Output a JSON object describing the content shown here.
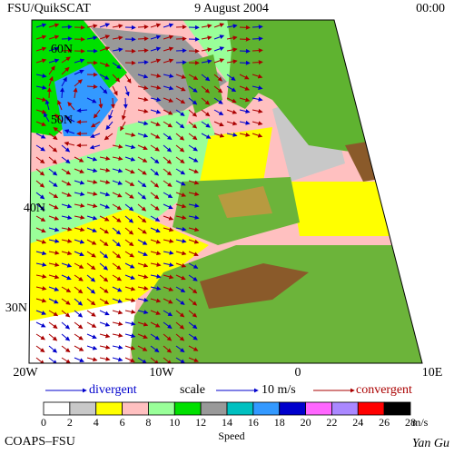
{
  "header": {
    "left": "FSU/QuikSCAT",
    "date": "9 August 2004",
    "time": "00:00"
  },
  "map": {
    "lat_labels": [
      "60N",
      "50N",
      "40N",
      "30N"
    ],
    "lon_labels": [
      "20W",
      "10W",
      "0",
      "10E"
    ]
  },
  "legend": {
    "divergent": "divergent",
    "scale": "scale",
    "scale_value": "10 m/s",
    "convergent": "convergent"
  },
  "colorbar": {
    "levels": [
      "0",
      "2",
      "4",
      "6",
      "8",
      "10",
      "12",
      "14",
      "16",
      "18",
      "20",
      "22",
      "24",
      "26",
      "28"
    ],
    "colors": [
      "#ffffff",
      "#c8c8c8",
      "#ffff00",
      "#ffc0c0",
      "#99ff99",
      "#00e000",
      "#999999",
      "#00c0c0",
      "#3399ff",
      "#0000cc",
      "#ff66ff",
      "#aa88ff",
      "#ff0000",
      "#000000"
    ],
    "unit": "m/s",
    "label": "Speed"
  },
  "footer": {
    "left": "COAPS–FSU",
    "right": "Yan Gu"
  }
}
